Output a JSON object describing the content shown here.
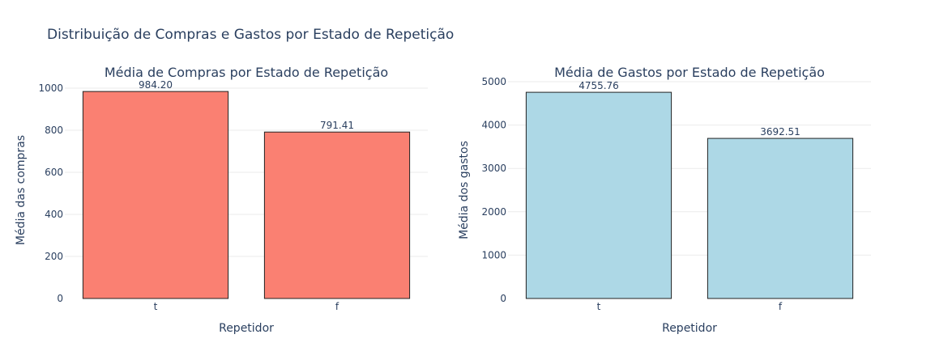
{
  "title": "Distribuição de Compras e Gastos por Estado de Repetição",
  "chart_data": [
    {
      "type": "bar",
      "title": "Média de Compras por Estado de Repetição",
      "xlabel": "Repetidor",
      "ylabel": "Média das compras",
      "categories": [
        "t",
        "f"
      ],
      "values": [
        984.2,
        791.41
      ],
      "data_labels": [
        "984.20",
        "791.41"
      ],
      "ylim": [
        0,
        1000
      ],
      "yticks": [
        0,
        200,
        400,
        600,
        800,
        1000
      ],
      "ytick_labels": [
        "0",
        "200",
        "400",
        "600",
        "800",
        "1000"
      ],
      "color": "#fa8072",
      "grid": true
    },
    {
      "type": "bar",
      "title": "Média de Gastos por Estado de Repetição",
      "xlabel": "Repetidor",
      "ylabel": "Média dos gastos",
      "categories": [
        "t",
        "f"
      ],
      "values": [
        4755.76,
        3692.51
      ],
      "data_labels": [
        "4755.76",
        "3692.51"
      ],
      "ylim": [
        0,
        5000
      ],
      "yticks": [
        0,
        1000,
        2000,
        3000,
        4000,
        5000
      ],
      "ytick_labels": [
        "0",
        "1000",
        "2000",
        "3000",
        "4000",
        "5000"
      ],
      "color": "#add8e6",
      "grid": true
    }
  ]
}
